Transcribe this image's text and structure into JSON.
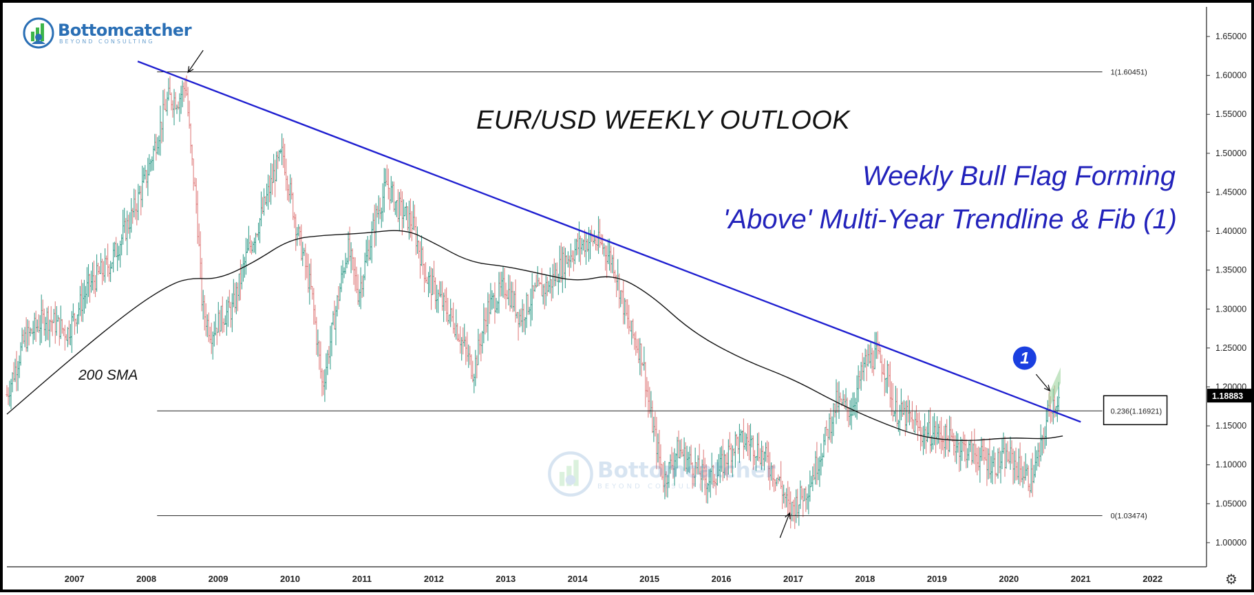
{
  "brand": {
    "name": "Bottomcatcher",
    "tagline": "BEYOND CONSULTING"
  },
  "annotations": {
    "title": "EUR/USD WEEKLY OUTLOOK",
    "subtitle_line1": "Weekly Bull Flag Forming",
    "subtitle_line2": "'Above' Multi-Year Trendline & Fib (1)",
    "sma_label": "200 SMA",
    "marker_number": "1"
  },
  "icons": {
    "settings": "gear-icon",
    "logo": "bottomcatcher-logo-icon"
  },
  "colors": {
    "trendline": "#1f1fd0",
    "marker": "#1a3fe0",
    "up_bar": "#3aa08f",
    "down_bar": "#e08080",
    "flag": "#9ed49e",
    "price_badge": "#000000"
  },
  "chart_data": {
    "type": "ohlc",
    "instrument": "EUR/USD",
    "timeframe": "Weekly",
    "x_ticks": [
      "2007",
      "2008",
      "2009",
      "2010",
      "2011",
      "2012",
      "2013",
      "2014",
      "2015",
      "2016",
      "2017",
      "2018",
      "2019",
      "2020",
      "2021",
      "2022"
    ],
    "y_ticks": [
      "1.65000",
      "1.60000",
      "1.55000",
      "1.50000",
      "1.45000",
      "1.40000",
      "1.35000",
      "1.30000",
      "1.25000",
      "1.20000",
      "1.15000",
      "1.10000",
      "1.05000",
      "1.00000"
    ],
    "ylim": [
      0.969,
      1.688
    ],
    "xlim": [
      2006.06,
      2022.75
    ],
    "current_price": "1.18883",
    "price_path": [
      [
        2006.06,
        1.19
      ],
      [
        2006.3,
        1.26
      ],
      [
        2006.6,
        1.29
      ],
      [
        2006.9,
        1.27
      ],
      [
        2007.2,
        1.33
      ],
      [
        2007.5,
        1.36
      ],
      [
        2007.8,
        1.42
      ],
      [
        2008.0,
        1.47
      ],
      [
        2008.3,
        1.57
      ],
      [
        2008.45,
        1.57
      ],
      [
        2008.55,
        1.59
      ],
      [
        2008.62,
        1.5
      ],
      [
        2008.7,
        1.43
      ],
      [
        2008.78,
        1.3
      ],
      [
        2008.9,
        1.27
      ],
      [
        2009.05,
        1.29
      ],
      [
        2009.2,
        1.3
      ],
      [
        2009.4,
        1.37
      ],
      [
        2009.6,
        1.42
      ],
      [
        2009.8,
        1.48
      ],
      [
        2009.9,
        1.5
      ],
      [
        2010.1,
        1.4
      ],
      [
        2010.3,
        1.32
      ],
      [
        2010.45,
        1.2
      ],
      [
        2010.6,
        1.28
      ],
      [
        2010.8,
        1.38
      ],
      [
        2010.95,
        1.32
      ],
      [
        2011.2,
        1.42
      ],
      [
        2011.35,
        1.46
      ],
      [
        2011.5,
        1.43
      ],
      [
        2011.7,
        1.41
      ],
      [
        2011.9,
        1.34
      ],
      [
        2012.1,
        1.31
      ],
      [
        2012.3,
        1.28
      ],
      [
        2012.55,
        1.22
      ],
      [
        2012.75,
        1.3
      ],
      [
        2013.0,
        1.33
      ],
      [
        2013.2,
        1.29
      ],
      [
        2013.4,
        1.32
      ],
      [
        2013.6,
        1.33
      ],
      [
        2013.8,
        1.36
      ],
      [
        2014.0,
        1.38
      ],
      [
        2014.2,
        1.39
      ],
      [
        2014.35,
        1.38
      ],
      [
        2014.5,
        1.36
      ],
      [
        2014.7,
        1.28
      ],
      [
        2014.9,
        1.24
      ],
      [
        2015.0,
        1.17
      ],
      [
        2015.2,
        1.08
      ],
      [
        2015.4,
        1.12
      ],
      [
        2015.6,
        1.1
      ],
      [
        2015.8,
        1.08
      ],
      [
        2015.95,
        1.09
      ],
      [
        2016.2,
        1.13
      ],
      [
        2016.4,
        1.13
      ],
      [
        2016.6,
        1.11
      ],
      [
        2016.8,
        1.08
      ],
      [
        2016.95,
        1.04
      ],
      [
        2017.2,
        1.07
      ],
      [
        2017.4,
        1.12
      ],
      [
        2017.6,
        1.18
      ],
      [
        2017.8,
        1.17
      ],
      [
        2018.0,
        1.23
      ],
      [
        2018.15,
        1.24
      ],
      [
        2018.3,
        1.22
      ],
      [
        2018.4,
        1.17
      ],
      [
        2018.6,
        1.16
      ],
      [
        2018.8,
        1.14
      ],
      [
        2019.0,
        1.14
      ],
      [
        2019.2,
        1.13
      ],
      [
        2019.4,
        1.12
      ],
      [
        2019.6,
        1.11
      ],
      [
        2019.8,
        1.1
      ],
      [
        2020.0,
        1.11
      ],
      [
        2020.2,
        1.09
      ],
      [
        2020.3,
        1.08
      ],
      [
        2020.45,
        1.12
      ],
      [
        2020.55,
        1.17
      ],
      [
        2020.6,
        1.18
      ],
      [
        2020.7,
        1.185
      ]
    ],
    "sma_200": {
      "name": "200 SMA",
      "points": [
        [
          2006.06,
          1.165
        ],
        [
          2007.0,
          1.24
        ],
        [
          2007.8,
          1.3
        ],
        [
          2008.3,
          1.33
        ],
        [
          2008.6,
          1.34
        ],
        [
          2009.0,
          1.338
        ],
        [
          2009.5,
          1.36
        ],
        [
          2010.0,
          1.39
        ],
        [
          2010.5,
          1.395
        ],
        [
          2011.0,
          1.397
        ],
        [
          2011.6,
          1.403
        ],
        [
          2012.0,
          1.385
        ],
        [
          2012.5,
          1.36
        ],
        [
          2013.0,
          1.355
        ],
        [
          2013.5,
          1.345
        ],
        [
          2014.0,
          1.335
        ],
        [
          2014.5,
          1.345
        ],
        [
          2015.0,
          1.32
        ],
        [
          2015.6,
          1.27
        ],
        [
          2016.3,
          1.235
        ],
        [
          2017.0,
          1.21
        ],
        [
          2017.6,
          1.18
        ],
        [
          2018.2,
          1.155
        ],
        [
          2018.8,
          1.135
        ],
        [
          2019.4,
          1.13
        ],
        [
          2020.0,
          1.135
        ],
        [
          2020.5,
          1.133
        ],
        [
          2020.75,
          1.137
        ]
      ]
    },
    "trendline": {
      "points": [
        [
          2007.88,
          1.618
        ],
        [
          2021.0,
          1.155
        ]
      ]
    },
    "fib_levels": [
      {
        "label": "1(1.60451)",
        "value": 1.60451,
        "x_start": 2008.15,
        "x_end": 2021.3
      },
      {
        "label": "0.236(1.16921)",
        "value": 1.16921,
        "x_start": 2008.15,
        "x_end": 2021.3,
        "boxed": true
      },
      {
        "label": "0(1.03474)",
        "value": 1.03474,
        "x_start": 2008.15,
        "x_end": 2021.3
      }
    ],
    "flag": {
      "points": [
        [
          2020.55,
          1.17
        ],
        [
          2020.72,
          1.205
        ],
        [
          2020.72,
          1.225
        ],
        [
          2020.55,
          1.19
        ]
      ]
    },
    "arrows": [
      {
        "x": 2008.58,
        "y": 1.604,
        "direction": "down-left"
      },
      {
        "x": 2016.95,
        "y": 1.038,
        "direction": "up-right"
      },
      {
        "x": 2020.57,
        "y": 1.195,
        "direction": "down-right"
      }
    ],
    "marker": {
      "label": "1",
      "x": 2020.22,
      "y": 1.237
    },
    "grid": false
  }
}
